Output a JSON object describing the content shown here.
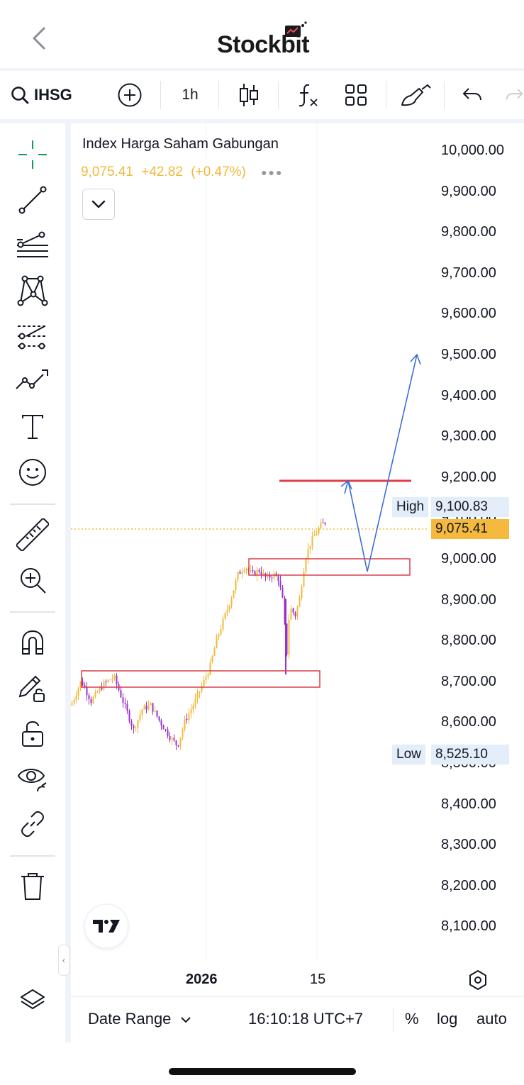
{
  "header": {
    "app_name": "Stockbit",
    "back_icon": "chevron-left-icon"
  },
  "toolbar": {
    "symbol": "IHSG",
    "interval": "1h",
    "icons": [
      "search-icon",
      "add-symbol-icon",
      "candlestick-icon",
      "indicators-icon",
      "layout-grid-icon",
      "brush-icon",
      "undo-icon"
    ]
  },
  "left_tools": [
    "crosshair-icon",
    "trend-line-icon",
    "fib-retracement-icon",
    "xabcd-pattern-icon",
    "position-icon",
    "forecast-icon",
    "text-icon",
    "emoji-icon",
    "ruler-icon",
    "zoom-in-icon",
    "magnet-icon",
    "lock-drawing-icon",
    "unlock-icon",
    "eye-icon",
    "link-icon",
    "trash-icon",
    "layers-icon"
  ],
  "chart": {
    "legend_title": "Index Harga Saham Gabungan",
    "last_price": "9,075.41",
    "change": "+42.82",
    "change_pct": "(+0.47%)",
    "up_color": "#f2b93b",
    "down_color": "#9b30c8",
    "price_axis": [
      "10,000.00",
      "9,900.00",
      "9,800.00",
      "9,700.00",
      "9,600.00",
      "9,500.00",
      "9,400.00",
      "9,300.00",
      "9,200.00",
      "9,100.00",
      "9,000.00",
      "8,900.00",
      "8,800.00",
      "8,700.00",
      "8,600.00",
      "8,500.00",
      "8,400.00",
      "8,300.00",
      "8,200.00",
      "8,100.00"
    ],
    "high_label": "High",
    "high_value": "9,100.83",
    "low_label": "Low",
    "low_value": "8,525.10",
    "time_labels": [
      {
        "text": "2026",
        "bold": true
      },
      {
        "text": "15",
        "bold": false
      }
    ]
  },
  "bottom_bar": {
    "date_range": "Date Range",
    "time": "16:10:18 UTC+7",
    "percent": "%",
    "log": "log",
    "auto": "auto"
  }
}
